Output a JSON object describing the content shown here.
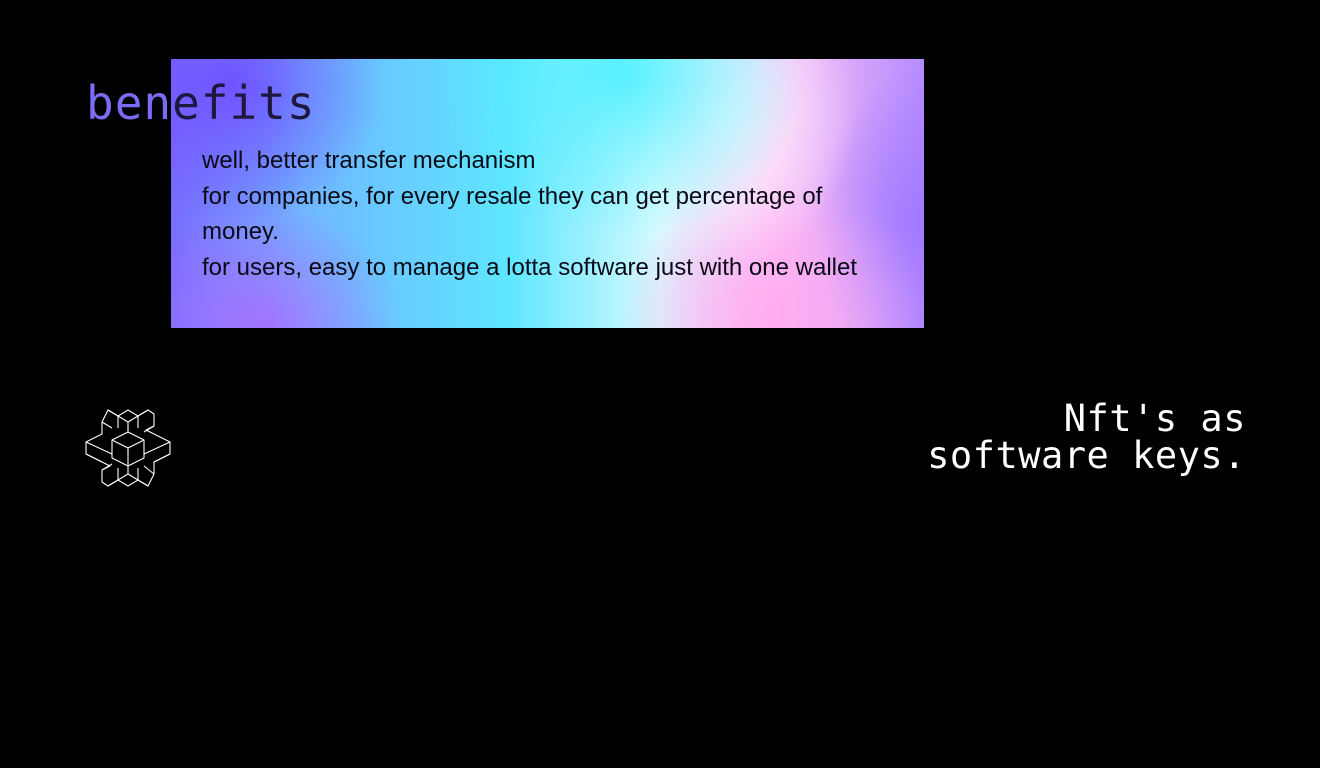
{
  "slide": {
    "heading": "benefits",
    "body_lines": [
      "well, better transfer mechanism",
      "for companies, for every resale they can get percentage of money.",
      "for users, easy to manage a lotta software just with one wallet"
    ],
    "tagline_line1": "Nft's as",
    "tagline_line2": "software keys.",
    "logo_icon": "geometric-cube-star-icon"
  },
  "colors": {
    "background": "#000000",
    "heading_accent": "#7b6cf6",
    "tagline": "#ffffff",
    "gradient_stops": [
      "#7a6cff",
      "#6fb8ff",
      "#5ee6ff",
      "#d8fbff",
      "#ffc0f5",
      "#b48cff"
    ]
  }
}
